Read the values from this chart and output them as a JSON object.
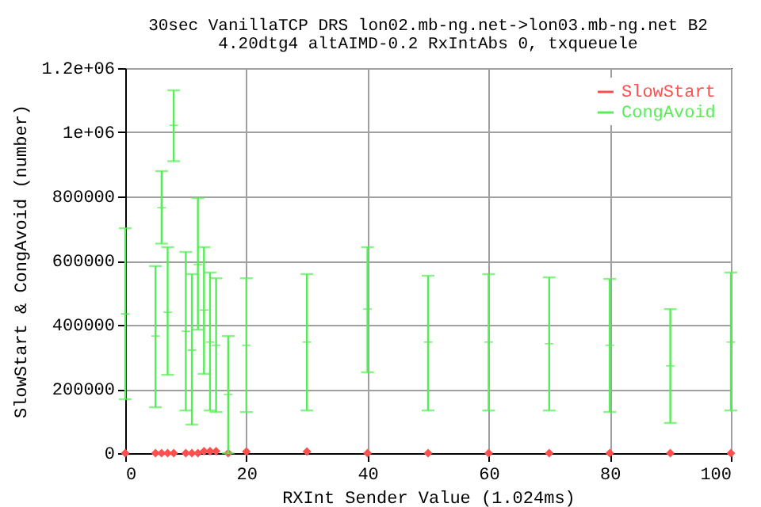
{
  "chart_data": {
    "type": "scatter",
    "title": "30sec VanillaTCP DRS lon02.mb-ng.net->lon03.mb-ng.net B2",
    "subtitle": "4.20dtg4 altAIMD-0.2 RxIntAbs 0, txqueuele",
    "xlabel": "RXInt Sender Value (1.024ms)",
    "ylabel": "SlowStart & CongAvoid (number)",
    "xlim": [
      0,
      100
    ],
    "xticks": [
      0,
      20,
      40,
      60,
      80,
      100
    ],
    "ylim": [
      0,
      1200000
    ],
    "yticks": [
      0,
      200000,
      400000,
      600000,
      800000,
      {
        "value": 1000000,
        "label": "1e+06"
      },
      {
        "value": 1200000,
        "label": "1.2e+06"
      }
    ],
    "grid": true,
    "legend": "top right",
    "marker": "diamond",
    "x": [
      0,
      5,
      6,
      7,
      8,
      10,
      11,
      12,
      13,
      14,
      15,
      17,
      20,
      30,
      40,
      50,
      60,
      70,
      80,
      90,
      100
    ],
    "series": [
      {
        "name": "SlowStart",
        "color": "#ff5050",
        "values": [
          0,
          0,
          0,
          0,
          0,
          0,
          0,
          0,
          6000,
          6000,
          6000,
          0,
          5000,
          5000,
          0,
          0,
          0,
          0,
          0,
          0,
          0
        ]
      },
      {
        "name": "CongAvoid",
        "color": "#55ee55",
        "marker": "cross",
        "values": [
          434000,
          365000,
          765000,
          439000,
          1022000,
          380000,
          321000,
          588000,
          446000,
          346000,
          336000,
          183000,
          336000,
          346000,
          449000,
          346000,
          346000,
          341000,
          336000,
          272000,
          346000
        ],
        "errors": [
          [
            168000,
            701000
          ],
          [
            143000,
            583000
          ],
          [
            653000,
            879000
          ],
          [
            244000,
            642000
          ],
          [
            910000,
            1131000
          ],
          [
            133000,
            627000
          ],
          [
            89000,
            558000
          ],
          [
            385000,
            795000
          ],
          [
            247000,
            642000
          ],
          [
            133000,
            563000
          ],
          [
            128000,
            545000
          ],
          [
            0,
            365000
          ],
          [
            128000,
            545000
          ],
          [
            133000,
            558000
          ],
          [
            252000,
            642000
          ],
          [
            133000,
            553000
          ],
          [
            133000,
            558000
          ],
          [
            133000,
            548000
          ],
          [
            128000,
            543000
          ],
          [
            94000,
            449000
          ],
          [
            133000,
            563000
          ]
        ]
      }
    ]
  }
}
